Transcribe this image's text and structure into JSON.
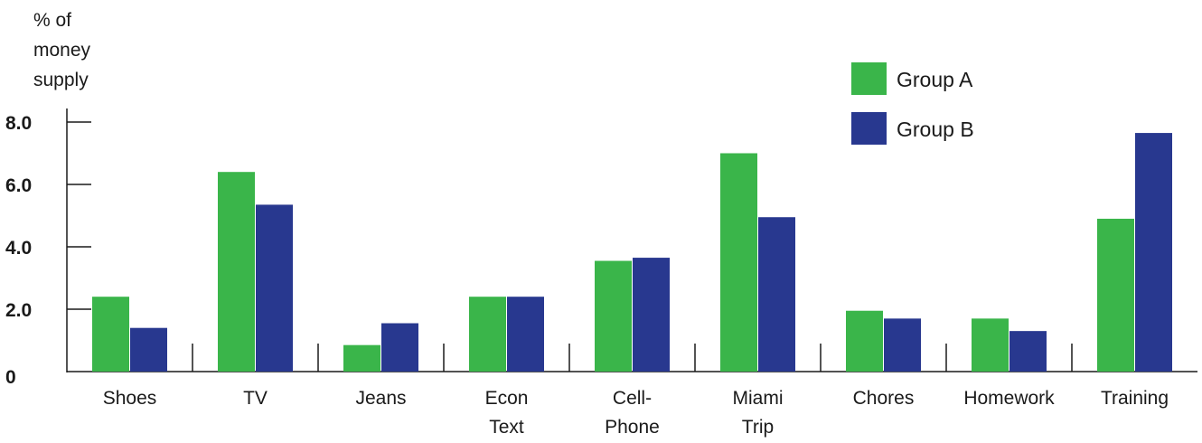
{
  "chart_data": {
    "type": "bar",
    "ylabel_lines": [
      "% of",
      "money",
      "supply"
    ],
    "yticks": [
      "0",
      "2.0",
      "4.0",
      "6.0",
      "8.0"
    ],
    "ylim": [
      0,
      8
    ],
    "categories": [
      [
        "Shoes"
      ],
      [
        "TV"
      ],
      [
        "Jeans"
      ],
      [
        "Econ",
        "Text"
      ],
      [
        "Cell-",
        "Phone"
      ],
      [
        "Miami",
        "Trip"
      ],
      [
        "Chores"
      ],
      [
        "Homework"
      ],
      [
        "Training"
      ]
    ],
    "series": [
      {
        "name": "Group A",
        "color": "#3ab54a",
        "values": [
          2.4,
          6.4,
          0.85,
          2.4,
          3.55,
          7.0,
          1.95,
          1.7,
          4.9
        ]
      },
      {
        "name": "Group B",
        "color": "#28388f",
        "values": [
          1.4,
          5.35,
          1.55,
          2.4,
          3.65,
          4.95,
          1.7,
          1.3,
          7.65
        ]
      }
    ],
    "legend_position": "top-right",
    "grid": false
  }
}
